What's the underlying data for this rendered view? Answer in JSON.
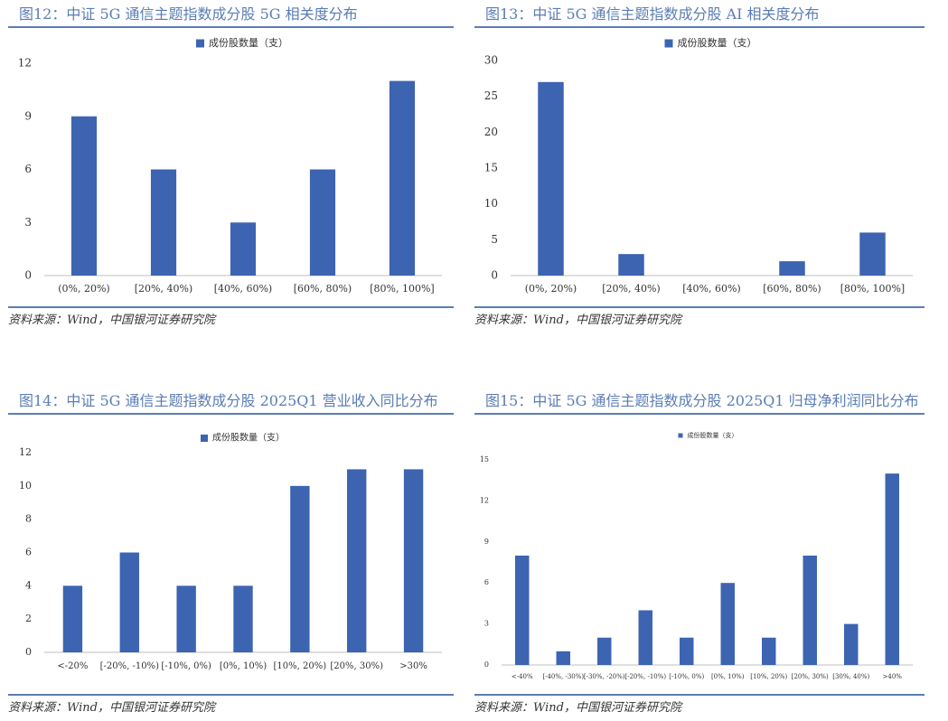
{
  "panels": [
    {
      "title": "图12：中证 5G 通信主题指数成分股 5G 相关度分布",
      "source": "资料来源：Wind，中国银河证券研究院"
    },
    {
      "title": "图13：中证 5G 通信主题指数成分股 AI 相关度分布",
      "source": "资料来源：Wind，中国银河证券研究院"
    },
    {
      "title": "图14：中证 5G 通信主题指数成分股 2025Q1 营业收入同比分布",
      "source": "资料来源：Wind，中国银河证券研究院"
    },
    {
      "title": "图15：中证 5G 通信主题指数成分股 2025Q1 归母净利润同比分布",
      "source": "资料来源：Wind，中国银河证券研究院"
    }
  ],
  "colors": {
    "bar": "#3c64b1",
    "accent": "#5a7db5"
  },
  "chart_data": [
    {
      "type": "bar",
      "title": "图12：中证 5G 通信主题指数成分股 5G 相关度分布",
      "categories": [
        "(0%, 20%)",
        "[20%, 40%)",
        "[40%, 60%)",
        "[60%, 80%)",
        "[80%, 100%]"
      ],
      "series": [
        {
          "name": "成份股数量（支）",
          "values": [
            9,
            6,
            3,
            6,
            11
          ]
        }
      ],
      "yticks": [
        0,
        3,
        6,
        9,
        12
      ],
      "ylim": [
        0,
        12
      ],
      "legend": "top-center",
      "grid": false
    },
    {
      "type": "bar",
      "title": "图13：中证 5G 通信主题指数成分股 AI 相关度分布",
      "categories": [
        "(0%, 20%)",
        "[20%, 40%)",
        "[40%, 60%)",
        "[60%, 80%)",
        "[80%, 100%]"
      ],
      "series": [
        {
          "name": "成份股数量（支）",
          "values": [
            27,
            3,
            0,
            2,
            6
          ]
        }
      ],
      "yticks": [
        0,
        5,
        10,
        15,
        20,
        25,
        30
      ],
      "ylim": [
        0,
        30
      ],
      "legend": "top-center",
      "grid": false
    },
    {
      "type": "bar",
      "title": "图14：中证 5G 通信主题指数成分股 2025Q1 营业收入同比分布",
      "categories": [
        "<-20%",
        "[-20%, -10%)",
        "[-10%, 0%)",
        "[0%, 10%)",
        "[10%, 20%)",
        "[20%, 30%)",
        ">30%"
      ],
      "series": [
        {
          "name": "成份股数量（支）",
          "values": [
            4,
            6,
            4,
            4,
            10,
            11,
            11
          ]
        }
      ],
      "yticks": [
        0,
        2,
        4,
        6,
        8,
        10,
        12
      ],
      "ylim": [
        0,
        12
      ],
      "legend": "top-center",
      "grid": false
    },
    {
      "type": "bar",
      "title": "图15：中证 5G 通信主题指数成分股 2025Q1 归母净利润同比分布",
      "categories": [
        "<-40%",
        "[-40%, -30%)",
        "[-30%, -20%)",
        "[-20%, -10%)",
        "[-10%, 0%)",
        "[0%, 10%)",
        "[10%, 20%)",
        "[20%, 30%)",
        "[30%, 40%)",
        ">40%"
      ],
      "series": [
        {
          "name": "成份股数量（支）",
          "values": [
            8,
            1,
            2,
            4,
            2,
            6,
            2,
            8,
            3,
            14
          ]
        }
      ],
      "yticks": [
        0,
        3,
        6,
        9,
        12,
        15
      ],
      "ylim": [
        0,
        15
      ],
      "legend": "top-center",
      "grid": false
    }
  ]
}
